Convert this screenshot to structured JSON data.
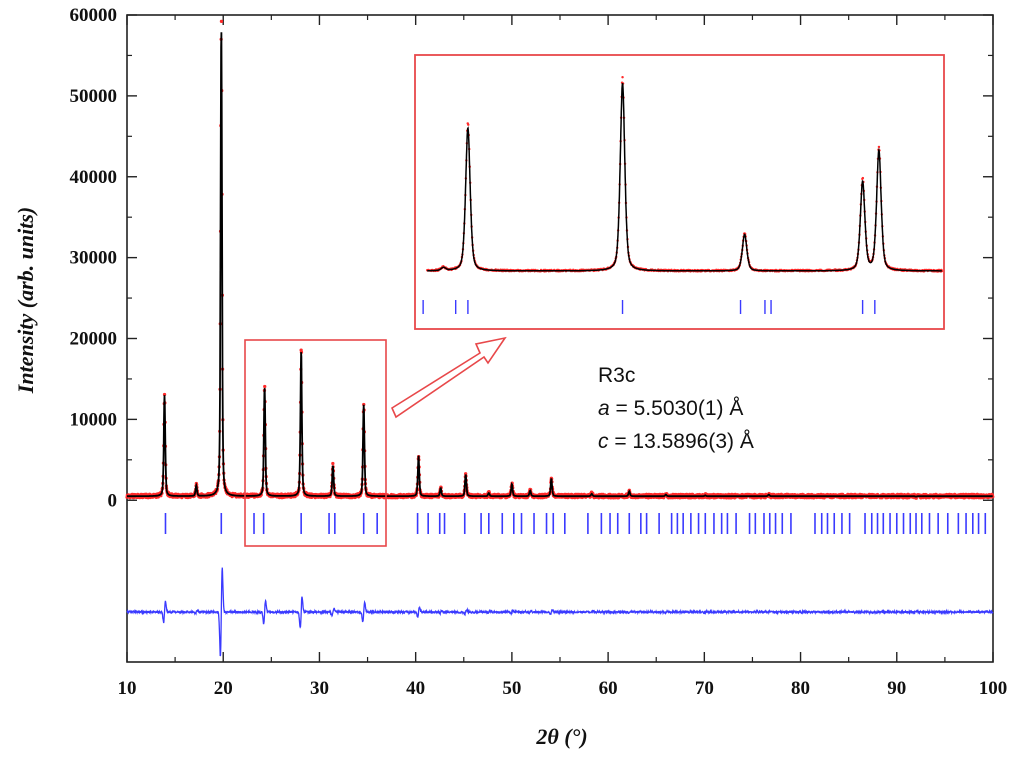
{
  "chart_data": {
    "type": "scatter",
    "xlabel": "2θ (°)",
    "ylabel": "Intensity (arb. units)",
    "xlim": [
      10,
      100
    ],
    "ylim": [
      -20000,
      60000
    ],
    "x_ticks": [
      "10",
      "20",
      "30",
      "40",
      "50",
      "60",
      "70",
      "80",
      "90",
      "100"
    ],
    "y_ticks": [
      "0",
      "10000",
      "20000",
      "30000",
      "40000",
      "50000",
      "60000"
    ],
    "background_level": 500,
    "peaks": [
      {
        "x": 13.9,
        "y": 13000
      },
      {
        "x": 17.2,
        "y": 1800
      },
      {
        "x": 19.8,
        "y": 58500
      },
      {
        "x": 24.3,
        "y": 14000
      },
      {
        "x": 28.1,
        "y": 18500
      },
      {
        "x": 31.4,
        "y": 4300
      },
      {
        "x": 34.6,
        "y": 11800
      },
      {
        "x": 40.3,
        "y": 5500
      },
      {
        "x": 42.6,
        "y": 1500
      },
      {
        "x": 45.2,
        "y": 3200
      },
      {
        "x": 47.6,
        "y": 900
      },
      {
        "x": 50.0,
        "y": 2000
      },
      {
        "x": 51.9,
        "y": 1200
      },
      {
        "x": 54.1,
        "y": 2700
      },
      {
        "x": 58.3,
        "y": 800
      },
      {
        "x": 62.2,
        "y": 1100
      },
      {
        "x": 66.0,
        "y": 700
      },
      {
        "x": 70.1,
        "y": 600
      },
      {
        "x": 76.7,
        "y": 700
      },
      {
        "x": 80.2,
        "y": 500
      },
      {
        "x": 86.0,
        "y": 500
      },
      {
        "x": 92.0,
        "y": 450
      }
    ],
    "bragg_ticks": [
      14.0,
      19.8,
      23.2,
      24.2,
      28.1,
      31.0,
      31.6,
      34.6,
      36.0,
      40.2,
      41.3,
      42.5,
      43.0,
      45.1,
      46.8,
      47.6,
      49.0,
      50.2,
      51.0,
      52.3,
      53.6,
      54.3,
      55.5,
      57.9,
      59.3,
      60.2,
      61.0,
      62.2,
      63.4,
      64.0,
      65.3,
      66.6,
      67.2,
      67.8,
      68.6,
      69.4,
      70.1,
      71.0,
      71.8,
      72.4,
      73.3,
      74.7,
      75.3,
      76.2,
      76.8,
      77.4,
      78.1,
      79.0,
      81.5,
      82.2,
      82.8,
      83.5,
      84.3,
      85.1,
      86.7,
      87.4,
      88.0,
      88.6,
      89.3,
      90.0,
      90.7,
      91.4,
      92.0,
      92.6,
      93.4,
      94.3,
      95.3,
      96.4,
      97.2,
      97.9,
      98.5,
      99.2
    ],
    "inset": {
      "xlim": [
        23,
        36
      ],
      "peaks": [
        {
          "x": 23.7,
          "y": 800
        },
        {
          "x": 24.3,
          "y": 14200
        },
        {
          "x": 28.1,
          "y": 18500
        },
        {
          "x": 31.1,
          "y": 4000
        },
        {
          "x": 34.0,
          "y": 9000
        },
        {
          "x": 34.4,
          "y": 12000
        }
      ],
      "bragg_ticks": [
        23.2,
        24.0,
        24.3,
        28.1,
        31.0,
        31.6,
        31.75,
        34.0,
        34.3
      ]
    },
    "colors": {
      "observed": "#ff2a2a",
      "calculated": "#000000",
      "bragg": "#3a3aff",
      "difference": "#3a3aff",
      "inset_frame": "#e8484a"
    },
    "annotation": {
      "line1": "R3c",
      "line2_var": "a",
      "line2_rest": " = 5.5030(1) Å",
      "line3_var": "c",
      "line3_rest": " = 13.5896(3) Å"
    }
  }
}
